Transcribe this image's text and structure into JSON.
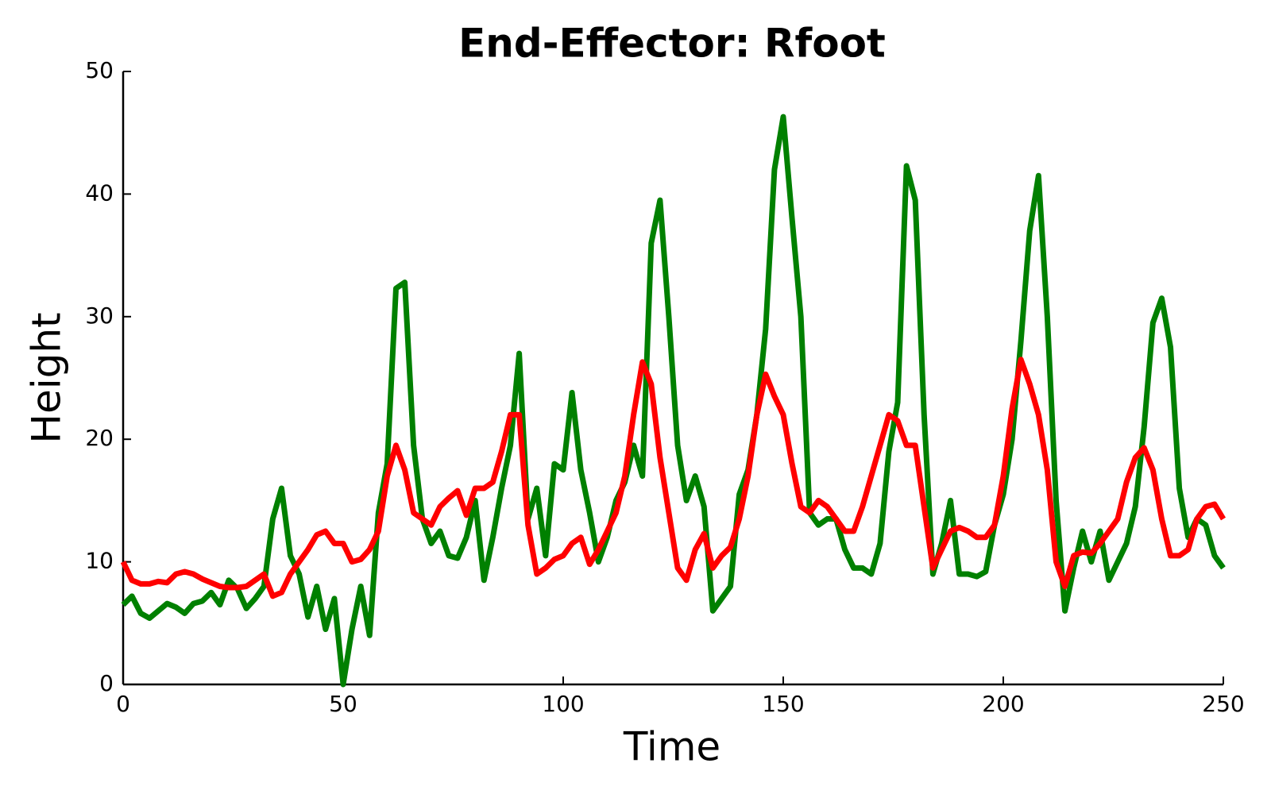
{
  "chart_data": {
    "type": "line",
    "title": "End-Effector: Rfoot",
    "xlabel": "Time",
    "ylabel": "Height",
    "xlim": [
      0,
      250
    ],
    "xticks": [
      0,
      50,
      100,
      150,
      200,
      250
    ],
    "ylim": [
      0,
      50
    ],
    "yticks": [
      0,
      10,
      20,
      30,
      40,
      50
    ],
    "grid": false,
    "x": [
      0,
      2,
      4,
      6,
      8,
      10,
      12,
      14,
      16,
      18,
      20,
      22,
      24,
      26,
      28,
      30,
      32,
      34,
      36,
      38,
      40,
      42,
      44,
      46,
      48,
      50,
      52,
      54,
      56,
      58,
      60,
      62,
      64,
      66,
      68,
      70,
      72,
      74,
      76,
      78,
      80,
      82,
      84,
      86,
      88,
      90,
      92,
      94,
      96,
      98,
      100,
      102,
      104,
      106,
      108,
      110,
      112,
      114,
      116,
      118,
      120,
      122,
      124,
      126,
      128,
      130,
      132,
      134,
      136,
      138,
      140,
      142,
      144,
      146,
      148,
      150,
      152,
      154,
      156,
      158,
      160,
      162,
      164,
      166,
      168,
      170,
      172,
      174,
      176,
      178,
      180,
      182,
      184,
      186,
      188,
      190,
      192,
      194,
      196,
      198,
      200,
      202,
      204,
      206,
      208,
      210,
      212,
      214,
      216,
      218,
      220,
      222,
      224,
      226,
      228,
      230,
      232,
      234,
      236,
      238,
      240,
      242,
      244,
      246,
      248,
      250
    ],
    "series": [
      {
        "color": "#008000",
        "values": [
          6.5,
          7.2,
          5.8,
          5.4,
          6.0,
          6.6,
          6.3,
          5.8,
          6.6,
          6.8,
          7.5,
          6.5,
          8.5,
          7.8,
          6.2,
          7.0,
          8.0,
          13.5,
          16.0,
          10.5,
          9.0,
          5.5,
          8.0,
          4.5,
          7.0,
          0,
          4.5,
          8.0,
          4.0,
          14.0,
          18,
          32.3,
          32.8,
          19.5,
          13.5,
          11.5,
          12.5,
          10.5,
          10.3,
          12.0,
          15.0,
          8.5,
          12.0,
          16.0,
          19.5,
          27.0,
          13.5,
          16.0,
          10.5,
          18.0,
          17.5,
          23.8,
          17.5,
          14.0,
          10.0,
          12.0,
          15.0,
          16.5,
          19.5,
          17.0,
          36.0,
          39.5,
          30.0,
          19.5,
          15.0,
          17.0,
          14.5,
          6.0,
          7.0,
          8.0,
          15.5,
          17.5,
          22.0,
          29.0,
          42.0,
          46.3,
          38.0,
          30.0,
          14.0,
          13.0,
          13.5,
          13.5,
          11.0,
          9.5,
          9.5,
          9.0,
          11.5,
          19.0,
          23.0,
          42.3,
          39.5,
          22.0,
          9.0,
          11.5,
          15.0,
          9.0,
          9.0,
          8.8,
          9.2,
          13.0,
          15.5,
          20.0,
          28.0,
          37.0,
          41.5,
          30.0,
          15.0,
          6.0,
          9.5,
          12.5,
          10.0,
          12.5,
          8.5,
          10.0,
          11.5,
          14.5,
          21.0,
          29.5,
          31.5,
          27.5,
          16.0,
          12.0,
          13.5,
          13.0,
          10.5,
          9.5
        ]
      },
      {
        "color": "#ff0000",
        "values": [
          10.0,
          8.5,
          8.2,
          8.2,
          8.4,
          8.3,
          9.0,
          9.2,
          9.0,
          8.6,
          8.3,
          8.0,
          7.9,
          7.9,
          8.0,
          8.5,
          9.0,
          7.2,
          7.5,
          9.0,
          10.0,
          11.0,
          12.2,
          12.5,
          11.5,
          11.5,
          10.0,
          10.2,
          11.0,
          12.5,
          17.0,
          19.5,
          17.5,
          14.0,
          13.5,
          13.0,
          14.5,
          15.2,
          15.8,
          13.8,
          16.0,
          16.0,
          16.5,
          19.0,
          22.0,
          22.0,
          13.0,
          9.0,
          9.5,
          10.2,
          10.5,
          11.5,
          12.0,
          9.8,
          11.0,
          12.5,
          14.0,
          17.0,
          22.0,
          26.3,
          24.5,
          18.5,
          14.0,
          9.5,
          8.5,
          11.0,
          12.3,
          9.5,
          10.5,
          11.2,
          13.5,
          17.0,
          22.0,
          25.3,
          23.5,
          22.0,
          18.0,
          14.5,
          14.0,
          15.0,
          14.5,
          13.5,
          12.5,
          12.5,
          14.5,
          17.0,
          19.5,
          22.0,
          21.5,
          19.5,
          19.5,
          14.5,
          9.5,
          11.0,
          12.5,
          12.8,
          12.5,
          12.0,
          12.0,
          13.0,
          17.0,
          22.5,
          26.5,
          24.5,
          22.0,
          17.5,
          10.0,
          8.0,
          10.5,
          10.8,
          10.7,
          11.5,
          12.5,
          13.5,
          16.5,
          18.5,
          19.3,
          17.5,
          13.5,
          10.5,
          10.5,
          11.0,
          13.5,
          14.5,
          14.7,
          13.5
        ]
      }
    ]
  }
}
